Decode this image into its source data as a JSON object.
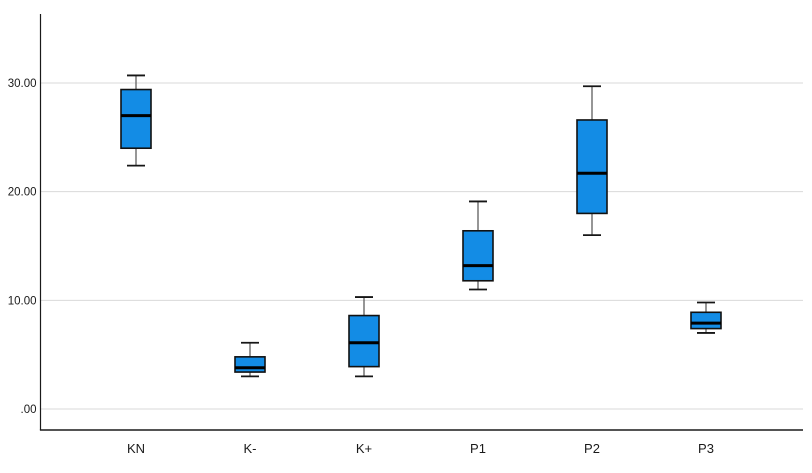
{
  "chart_data": {
    "type": "box",
    "title": "",
    "xlabel": "",
    "ylabel": "",
    "categories": [
      "KN",
      "K-",
      "K+",
      "P1",
      "P2",
      "P3"
    ],
    "boxes": [
      {
        "label": "KN",
        "min": 22.4,
        "q1": 24.0,
        "median": 27.0,
        "q3": 29.4,
        "max": 30.7
      },
      {
        "label": "K-",
        "min": 3.0,
        "q1": 3.4,
        "median": 3.8,
        "q3": 4.8,
        "max": 6.1
      },
      {
        "label": "K+",
        "min": 3.0,
        "q1": 3.9,
        "median": 6.1,
        "q3": 8.6,
        "max": 10.3
      },
      {
        "label": "P1",
        "min": 11.0,
        "q1": 11.8,
        "median": 13.2,
        "q3": 16.4,
        "max": 19.1
      },
      {
        "label": "P2",
        "min": 16.0,
        "q1": 18.0,
        "median": 21.7,
        "q3": 26.6,
        "max": 29.7
      },
      {
        "label": "P3",
        "min": 7.0,
        "q1": 7.4,
        "median": 7.9,
        "q3": 8.9,
        "max": 9.8
      }
    ],
    "y_axis": {
      "ticks": [
        {
          "label": "30.00",
          "value": 30
        },
        {
          "label": "20.00",
          "value": 20
        },
        {
          "label": "10.00",
          "value": 10
        },
        {
          "label": ".00",
          "value": 0
        }
      ],
      "range_shown": [
        -1.9,
        36.3
      ],
      "grid": true
    },
    "legend": null,
    "colors": {
      "box_fill": "#138ce5",
      "box_border": "#111111",
      "median": "#000000",
      "whisker_stem": "#6a6a6a",
      "whisker_cap": "#161616",
      "gridline": "#d9d9d9",
      "axis": "#1a1a1a",
      "tick_text": "#1a1a1a",
      "background": "#ffffff"
    }
  }
}
